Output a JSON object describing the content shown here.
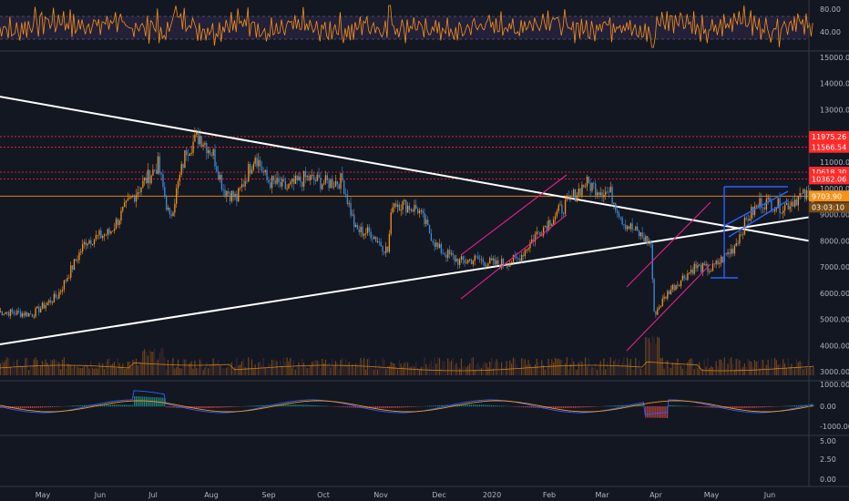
{
  "chart_data": {
    "type": "candlestick",
    "title": "",
    "colors": {
      "background": "#131722",
      "up": "#f7931a",
      "down": "#3f8fdc",
      "hline": "#ff2b2b",
      "priceline": "#f7931a",
      "trendline": "#ffffff",
      "channel": "#e91e8c",
      "flag": "#2962ff",
      "rsi": "#f7931a",
      "macd": "#2962ff",
      "signal": "#f7931a",
      "grid": "#2a2e39"
    },
    "x_labels": [
      "May",
      "Jun",
      "Jul",
      "Aug",
      "Sep",
      "Oct",
      "Nov",
      "Dec",
      "2020",
      "Feb",
      "Mar",
      "Apr",
      "May",
      "Jun"
    ],
    "price_axis": {
      "ticks": [
        "15000.00",
        "14000.00",
        "13000.00",
        "12000.00",
        "11000.00",
        "10000.00",
        "9000.00",
        "8000.00",
        "7000.00",
        "6000.00",
        "5000.00",
        "4000.00",
        "3000.00"
      ],
      "range": [
        2800,
        15100
      ]
    },
    "rsi_axis": {
      "ticks": [
        "80.00",
        "40.00"
      ],
      "range": [
        0,
        100
      ]
    },
    "macd_axis": {
      "ticks": [
        "1000.00",
        "0.00",
        "-1000.00"
      ],
      "range": [
        -1300,
        1300
      ]
    },
    "extra_axis": {
      "ticks": [
        "5.00",
        "2.50",
        "0.00"
      ]
    },
    "horizontal_levels": [
      {
        "value": 11975.26,
        "label": "11975.26"
      },
      {
        "value": 11566.54,
        "label": "11566.54"
      },
      {
        "value": 10618.3,
        "label": "10618.30"
      },
      {
        "value": 10362.06,
        "label": "10362.06"
      }
    ],
    "last_price": {
      "value": 9703.9,
      "label": "9703.90",
      "countdown": "03:03:10"
    },
    "anchors": [
      {
        "t": 0,
        "p": 5300
      },
      {
        "t": 20,
        "p": 5200
      },
      {
        "t": 35,
        "p": 5900
      },
      {
        "t": 52,
        "p": 8000
      },
      {
        "t": 66,
        "p": 8300
      },
      {
        "t": 80,
        "p": 9700
      },
      {
        "t": 95,
        "p": 10900
      },
      {
        "t": 102,
        "p": 8800
      },
      {
        "t": 112,
        "p": 11500
      },
      {
        "t": 120,
        "p": 12000
      },
      {
        "t": 128,
        "p": 11300
      },
      {
        "t": 134,
        "p": 10000
      },
      {
        "t": 142,
        "p": 9600
      },
      {
        "t": 153,
        "p": 11300
      },
      {
        "t": 160,
        "p": 10300
      },
      {
        "t": 172,
        "p": 10000
      },
      {
        "t": 183,
        "p": 10400
      },
      {
        "t": 195,
        "p": 10200
      },
      {
        "t": 205,
        "p": 10300
      },
      {
        "t": 213,
        "p": 8400
      },
      {
        "t": 222,
        "p": 8300
      },
      {
        "t": 232,
        "p": 7600
      },
      {
        "t": 235,
        "p": 9500
      },
      {
        "t": 250,
        "p": 9200
      },
      {
        "t": 262,
        "p": 7700
      },
      {
        "t": 275,
        "p": 7200
      },
      {
        "t": 285,
        "p": 7300
      },
      {
        "t": 297,
        "p": 7100
      },
      {
        "t": 310,
        "p": 7300
      },
      {
        "t": 320,
        "p": 8200
      },
      {
        "t": 337,
        "p": 9300
      },
      {
        "t": 350,
        "p": 10200
      },
      {
        "t": 357,
        "p": 10000
      },
      {
        "t": 365,
        "p": 9800
      },
      {
        "t": 373,
        "p": 8700
      },
      {
        "t": 383,
        "p": 8200
      },
      {
        "t": 389,
        "p": 7900
      },
      {
        "t": 391,
        "p": 5200
      },
      {
        "t": 400,
        "p": 6100
      },
      {
        "t": 415,
        "p": 7000
      },
      {
        "t": 425,
        "p": 6900
      },
      {
        "t": 438,
        "p": 7700
      },
      {
        "t": 447,
        "p": 8900
      },
      {
        "t": 455,
        "p": 9500
      },
      {
        "t": 468,
        "p": 9300
      },
      {
        "t": 478,
        "p": 9700
      },
      {
        "t": 486,
        "p": 9700
      }
    ],
    "n_candles": 487
  }
}
